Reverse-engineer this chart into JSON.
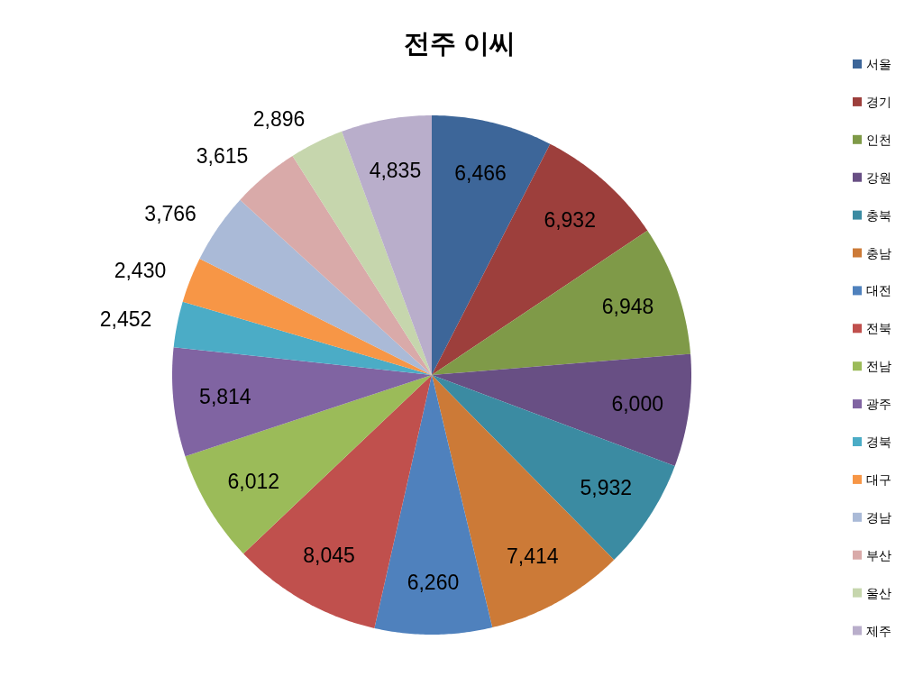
{
  "chart_data": {
    "type": "pie",
    "title": "전주 이씨",
    "categories": [
      "서울",
      "경기",
      "인천",
      "강원",
      "충북",
      "충남",
      "대전",
      "전북",
      "전남",
      "광주",
      "경북",
      "대구",
      "경남",
      "부산",
      "울산",
      "제주"
    ],
    "values": [
      6466,
      6932,
      6948,
      6000,
      5932,
      7414,
      6260,
      8045,
      6012,
      5814,
      2452,
      2430,
      3766,
      3615,
      2896,
      4835
    ],
    "value_labels": [
      "6,466",
      "6,932",
      "6,948",
      "6,000",
      "5,932",
      "7,414",
      "6,260",
      "8,045",
      "6,012",
      "5,814",
      "2,452",
      "2,430",
      "3,766",
      "3,615",
      "2,896",
      "4,835"
    ],
    "colors": [
      "#3d6699",
      "#9d3f3c",
      "#7f9a48",
      "#684f84",
      "#3b8ba2",
      "#cc7a37",
      "#4f81bd",
      "#c0504d",
      "#9bbb59",
      "#8064a2",
      "#4bacc6",
      "#f79646",
      "#aabad7",
      "#d9aaa9",
      "#c6d6ad",
      "#b9aecb"
    ],
    "legend": "right"
  }
}
